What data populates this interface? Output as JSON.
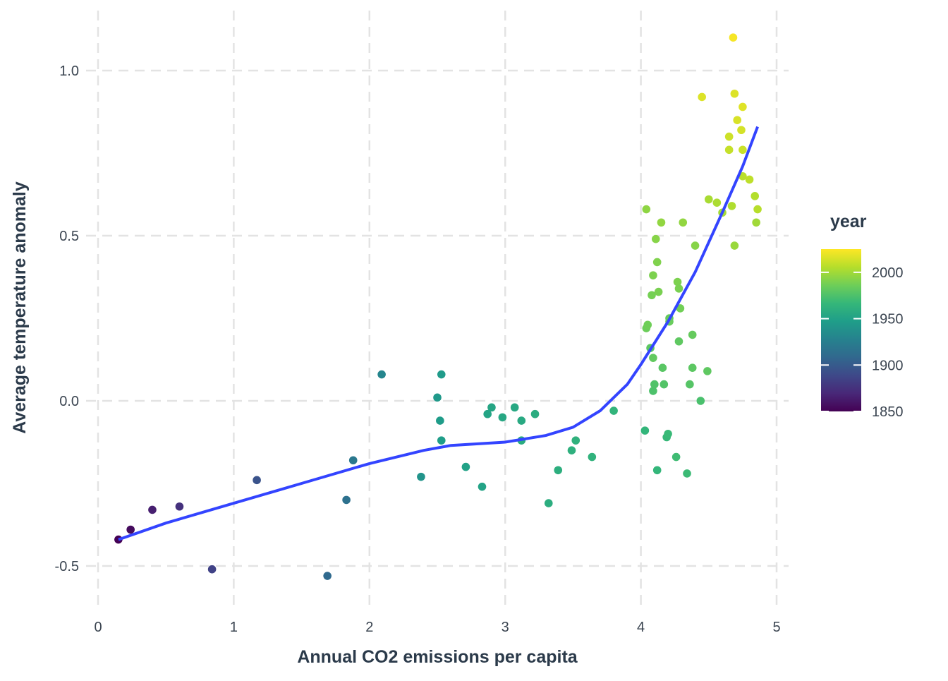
{
  "chart_data": {
    "type": "scatter",
    "xlabel": "Annual CO2 emissions per capita",
    "ylabel": "Average temperature anomaly",
    "xlim": [
      -0.1,
      5.08
    ],
    "ylim": [
      -0.62,
      1.18
    ],
    "x_ticks": [
      0,
      1,
      2,
      3,
      4,
      5
    ],
    "x_tick_labels": [
      "0",
      "1",
      "2",
      "3",
      "4",
      "5"
    ],
    "y_ticks": [
      -0.5,
      0.0,
      0.5,
      1.0
    ],
    "y_tick_labels": [
      "-0.5",
      "0.0",
      "0.5",
      "1.0"
    ],
    "grid": true,
    "legend": {
      "title": "year",
      "position": "right",
      "colormap": "viridis",
      "range": [
        1850,
        2025
      ],
      "ticks": [
        1850,
        1900,
        1950,
        2000
      ],
      "tick_labels": [
        "1850",
        "1900",
        "1950",
        "2000"
      ]
    },
    "points": {
      "x": [
        0.15,
        0.24,
        0.4,
        0.6,
        0.84,
        1.17,
        1.69,
        1.83,
        1.88,
        2.09,
        2.38,
        2.5,
        2.52,
        2.53,
        2.53,
        2.71,
        2.83,
        2.87,
        2.9,
        2.98,
        3.07,
        3.12,
        3.12,
        3.22,
        3.32,
        3.39,
        3.49,
        3.52,
        3.64,
        3.8,
        4.03,
        4.04,
        4.04,
        4.05,
        4.07,
        4.08,
        4.09,
        4.09,
        4.09,
        4.1,
        4.11,
        4.12,
        4.12,
        4.13,
        4.15,
        4.16,
        4.17,
        4.19,
        4.21,
        4.2,
        4.21,
        4.26,
        4.27,
        4.28,
        4.28,
        4.29,
        4.31,
        4.34,
        4.36,
        4.38,
        4.38,
        4.4,
        4.44,
        4.49,
        4.5,
        4.56,
        4.6,
        4.65,
        4.65,
        4.67,
        4.68,
        4.69,
        4.69,
        4.71,
        4.74,
        4.75,
        4.75,
        4.75,
        4.8,
        4.84,
        4.85,
        4.86,
        4.45
      ],
      "y": [
        -0.42,
        -0.39,
        -0.33,
        -0.32,
        -0.51,
        -0.24,
        -0.53,
        -0.3,
        -0.18,
        0.08,
        -0.23,
        0.01,
        -0.06,
        0.08,
        -0.12,
        -0.2,
        -0.26,
        -0.04,
        -0.02,
        -0.05,
        -0.02,
        -0.06,
        -0.12,
        -0.04,
        -0.31,
        -0.21,
        -0.15,
        -0.12,
        -0.17,
        -0.03,
        -0.09,
        0.58,
        0.22,
        0.23,
        0.16,
        0.32,
        0.38,
        0.03,
        0.13,
        0.05,
        0.49,
        -0.21,
        0.42,
        0.33,
        0.54,
        0.1,
        0.05,
        -0.11,
        0.25,
        -0.1,
        0.24,
        -0.17,
        0.36,
        0.18,
        0.34,
        0.28,
        0.54,
        -0.22,
        0.05,
        0.2,
        0.1,
        0.47,
        0.0,
        0.09,
        0.61,
        0.6,
        0.57,
        0.76,
        0.8,
        0.59,
        1.1,
        0.47,
        0.93,
        0.85,
        0.82,
        0.89,
        0.76,
        0.68,
        0.67,
        0.62,
        0.54,
        0.58,
        0.92
      ],
      "year": [
        1850,
        1855,
        1865,
        1875,
        1885,
        1895,
        1910,
        1915,
        1920,
        1930,
        1940,
        1944,
        1946,
        1945,
        1947,
        1950,
        1951,
        1952,
        1953,
        1954,
        1955,
        1956,
        1957,
        1958,
        1959,
        1960,
        1961,
        1962,
        1963,
        1964,
        1965,
        1995,
        1985,
        1986,
        1980,
        1988,
        1990,
        1975,
        1982,
        1976,
        1993,
        1966,
        1991,
        1989,
        1996,
        1979,
        1977,
        1967,
        1983,
        1968,
        1984,
        1970,
        1990,
        1981,
        1989,
        1987,
        1996,
        1969,
        1978,
        1983,
        1980,
        1993,
        1974,
        1981,
        2002,
        2003,
        2001,
        2010,
        2012,
        2004,
        2023,
        1998,
        2016,
        2015,
        2014,
        2017,
        2011,
        2007,
        2008,
        2005,
        2000,
        2006,
        2016
      ]
    },
    "smooth_line": {
      "color": "#3344FF",
      "x": [
        0.15,
        0.5,
        1.0,
        1.5,
        2.0,
        2.4,
        2.6,
        3.0,
        3.3,
        3.5,
        3.7,
        3.9,
        4.0,
        4.2,
        4.4,
        4.6,
        4.75,
        4.86
      ],
      "y": [
        -0.42,
        -0.37,
        -0.31,
        -0.25,
        -0.19,
        -0.15,
        -0.135,
        -0.125,
        -0.105,
        -0.08,
        -0.03,
        0.05,
        0.11,
        0.24,
        0.39,
        0.57,
        0.71,
        0.83
      ]
    }
  }
}
